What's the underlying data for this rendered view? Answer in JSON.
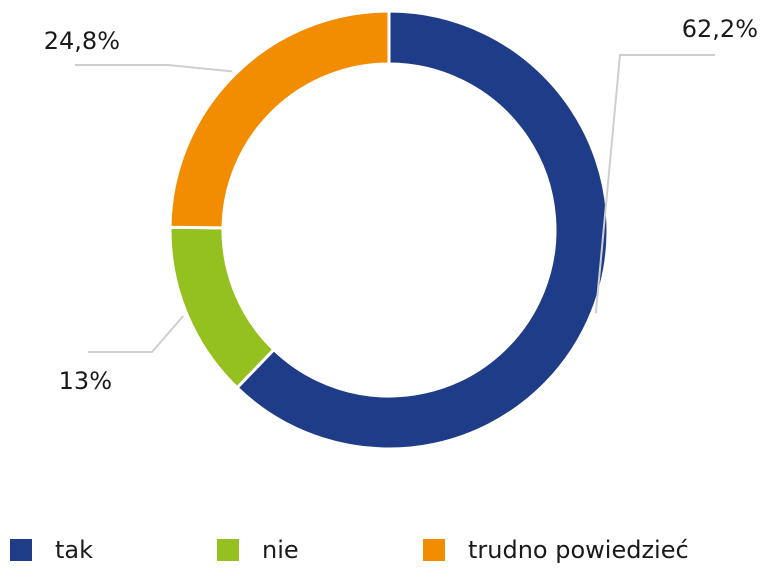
{
  "chart_data": {
    "type": "donut",
    "categories": [
      "tak",
      "nie",
      "trudno powiedzieć"
    ],
    "values": [
      62.2,
      13,
      24.8
    ],
    "value_labels": [
      "62,2%",
      "13%",
      "24,8%"
    ],
    "colors": [
      "#1f3c88",
      "#94c11f",
      "#f28c00"
    ]
  }
}
